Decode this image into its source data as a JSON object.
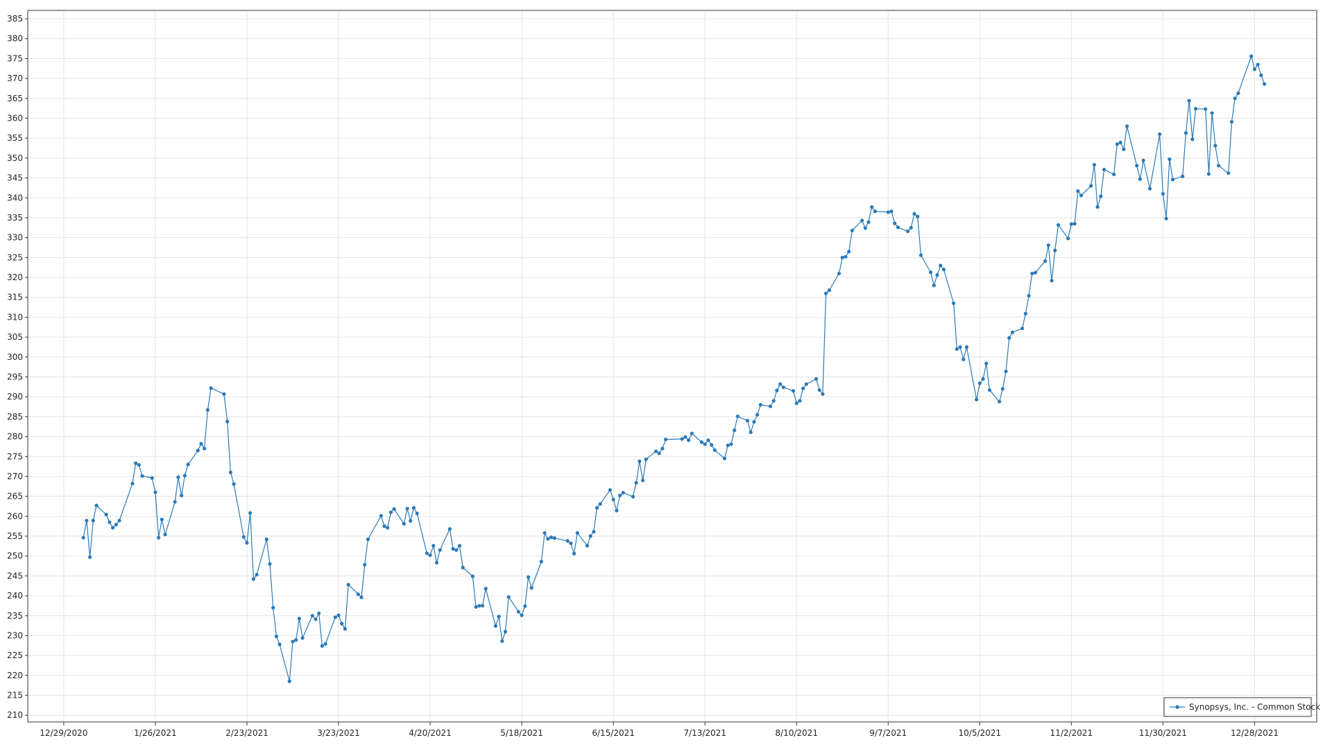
{
  "chart_data": {
    "type": "line",
    "legend_position": "bottom-right",
    "grid": true,
    "xlim": [
      "12/18/2020",
      "1/16/2022"
    ],
    "xticks": [
      "12/29/2020",
      "1/26/2021",
      "2/23/2021",
      "3/23/2021",
      "4/20/2021",
      "5/18/2021",
      "6/15/2021",
      "7/13/2021",
      "8/10/2021",
      "9/7/2021",
      "10/5/2021",
      "11/2/2021",
      "11/30/2021",
      "12/28/2021"
    ],
    "ylim": [
      208.3,
      387.1
    ],
    "yticks": [
      210,
      215,
      220,
      225,
      230,
      235,
      240,
      245,
      250,
      255,
      260,
      265,
      270,
      275,
      280,
      285,
      290,
      295,
      300,
      305,
      310,
      315,
      320,
      325,
      330,
      335,
      340,
      345,
      350,
      355,
      360,
      365,
      370,
      375,
      380,
      385
    ],
    "x": [
      "1/4/2021",
      "1/5/2021",
      "1/6/2021",
      "1/7/2021",
      "1/8/2021",
      "1/11/2021",
      "1/12/2021",
      "1/13/2021",
      "1/14/2021",
      "1/15/2021",
      "1/19/2021",
      "1/20/2021",
      "1/21/2021",
      "1/22/2021",
      "1/25/2021",
      "1/26/2021",
      "1/27/2021",
      "1/28/2021",
      "1/29/2021",
      "2/1/2021",
      "2/2/2021",
      "2/3/2021",
      "2/4/2021",
      "2/5/2021",
      "2/8/2021",
      "2/9/2021",
      "2/10/2021",
      "2/11/2021",
      "2/12/2021",
      "2/16/2021",
      "2/17/2021",
      "2/18/2021",
      "2/19/2021",
      "2/22/2021",
      "2/23/2021",
      "2/24/2021",
      "2/25/2021",
      "2/26/2021",
      "3/1/2021",
      "3/2/2021",
      "3/3/2021",
      "3/4/2021",
      "3/5/2021",
      "3/8/2021",
      "3/9/2021",
      "3/10/2021",
      "3/11/2021",
      "3/12/2021",
      "3/15/2021",
      "3/16/2021",
      "3/17/2021",
      "3/18/2021",
      "3/19/2021",
      "3/22/2021",
      "3/23/2021",
      "3/24/2021",
      "3/25/2021",
      "3/26/2021",
      "3/29/2021",
      "3/30/2021",
      "3/31/2021",
      "4/1/2021",
      "4/5/2021",
      "4/6/2021",
      "4/7/2021",
      "4/8/2021",
      "4/9/2021",
      "4/12/2021",
      "4/13/2021",
      "4/14/2021",
      "4/15/2021",
      "4/16/2021",
      "4/19/2021",
      "4/20/2021",
      "4/21/2021",
      "4/22/2021",
      "4/23/2021",
      "4/26/2021",
      "4/27/2021",
      "4/28/2021",
      "4/29/2021",
      "4/30/2021",
      "5/3/2021",
      "5/4/2021",
      "5/5/2021",
      "5/6/2021",
      "5/7/2021",
      "5/10/2021",
      "5/11/2021",
      "5/12/2021",
      "5/13/2021",
      "5/14/2021",
      "5/17/2021",
      "5/18/2021",
      "5/19/2021",
      "5/20/2021",
      "5/21/2021",
      "5/24/2021",
      "5/25/2021",
      "5/26/2021",
      "5/27/2021",
      "5/28/2021",
      "6/1/2021",
      "6/2/2021",
      "6/3/2021",
      "6/4/2021",
      "6/7/2021",
      "6/8/2021",
      "6/9/2021",
      "6/10/2021",
      "6/11/2021",
      "6/14/2021",
      "6/15/2021",
      "6/16/2021",
      "6/17/2021",
      "6/18/2021",
      "6/21/2021",
      "6/22/2021",
      "6/23/2021",
      "6/24/2021",
      "6/25/2021",
      "6/28/2021",
      "6/29/2021",
      "6/30/2021",
      "7/1/2021",
      "7/6/2021",
      "7/7/2021",
      "7/8/2021",
      "7/9/2021",
      "7/12/2021",
      "7/13/2021",
      "7/14/2021",
      "7/15/2021",
      "7/16/2021",
      "7/19/2021",
      "7/20/2021",
      "7/21/2021",
      "7/22/2021",
      "7/23/2021",
      "7/26/2021",
      "7/27/2021",
      "7/28/2021",
      "7/29/2021",
      "7/30/2021",
      "8/2/2021",
      "8/3/2021",
      "8/4/2021",
      "8/5/2021",
      "8/6/2021",
      "8/9/2021",
      "8/10/2021",
      "8/11/2021",
      "8/12/2021",
      "8/13/2021",
      "8/16/2021",
      "8/17/2021",
      "8/18/2021",
      "8/19/2021",
      "8/20/2021",
      "8/23/2021",
      "8/24/2021",
      "8/25/2021",
      "8/26/2021",
      "8/27/2021",
      "8/30/2021",
      "8/31/2021",
      "9/1/2021",
      "9/2/2021",
      "9/3/2021",
      "9/7/2021",
      "9/8/2021",
      "9/9/2021",
      "9/10/2021",
      "9/13/2021",
      "9/14/2021",
      "9/15/2021",
      "9/16/2021",
      "9/17/2021",
      "9/20/2021",
      "9/21/2021",
      "9/22/2021",
      "9/23/2021",
      "9/24/2021",
      "9/27/2021",
      "9/28/2021",
      "9/29/2021",
      "9/30/2021",
      "10/1/2021",
      "10/4/2021",
      "10/5/2021",
      "10/6/2021",
      "10/7/2021",
      "10/8/2021",
      "10/11/2021",
      "10/12/2021",
      "10/13/2021",
      "10/14/2021",
      "10/15/2021",
      "10/18/2021",
      "10/19/2021",
      "10/20/2021",
      "10/21/2021",
      "10/22/2021",
      "10/25/2021",
      "10/26/2021",
      "10/27/2021",
      "10/28/2021",
      "10/29/2021",
      "11/1/2021",
      "11/2/2021",
      "11/3/2021",
      "11/4/2021",
      "11/5/2021",
      "11/8/2021",
      "11/9/2021",
      "11/10/2021",
      "11/11/2021",
      "11/12/2021",
      "11/15/2021",
      "11/16/2021",
      "11/17/2021",
      "11/18/2021",
      "11/19/2021",
      "11/22/2021",
      "11/23/2021",
      "11/24/2021",
      "11/26/2021",
      "11/29/2021",
      "11/30/2021",
      "12/1/2021",
      "12/2/2021",
      "12/3/2021",
      "12/6/2021",
      "12/7/2021",
      "12/8/2021",
      "12/9/2021",
      "12/10/2021",
      "12/13/2021",
      "12/14/2021",
      "12/15/2021",
      "12/16/2021",
      "12/17/2021",
      "12/20/2021",
      "12/21/2021",
      "12/22/2021",
      "12/23/2021",
      "12/27/2021",
      "12/28/2021",
      "12/29/2021",
      "12/30/2021",
      "12/31/2021"
    ],
    "series": [
      {
        "name": "Synopsys, Inc. - Common Stock",
        "color": "#2a7ab8",
        "values": [
          254.6,
          258.9,
          249.7,
          258.9,
          262.7,
          260.4,
          258.5,
          257.1,
          257.9,
          258.9,
          268.2,
          273.3,
          272.9,
          270.1,
          269.6,
          266.0,
          254.6,
          259.2,
          255.4,
          263.6,
          269.8,
          265.2,
          270.2,
          273.0,
          276.5,
          278.2,
          277.0,
          286.7,
          292.2,
          290.7,
          283.8,
          271.0,
          268.1,
          254.8,
          253.3,
          260.8,
          244.2,
          245.3,
          254.2,
          248.0,
          237.0,
          229.8,
          227.8,
          218.5,
          228.5,
          228.9,
          234.3,
          229.4,
          235.0,
          234.1,
          235.6,
          227.4,
          227.9,
          234.6,
          235.1,
          233.0,
          231.7,
          242.8,
          240.4,
          239.6,
          247.8,
          254.2,
          260.1,
          257.5,
          257.1,
          261.0,
          261.8,
          258.1,
          261.9,
          258.8,
          262.1,
          260.7,
          250.7,
          250.2,
          252.6,
          248.3,
          251.5,
          256.8,
          251.8,
          251.5,
          252.6,
          247.1,
          244.9,
          237.2,
          237.5,
          237.5,
          241.8,
          232.4,
          234.8,
          228.6,
          231.0,
          239.7,
          236.0,
          235.1,
          237.4,
          244.7,
          242.0,
          248.6,
          255.8,
          254.3,
          254.7,
          254.5,
          253.8,
          253.2,
          250.6,
          255.8,
          252.6,
          255.0,
          256.1,
          262.1,
          263.1,
          266.6,
          264.2,
          261.4,
          265.2,
          265.9,
          264.9,
          268.4,
          273.8,
          269.0,
          274.3,
          276.3,
          275.8,
          277.0,
          279.3,
          279.4,
          279.9,
          279.1,
          280.8,
          278.6,
          278.1,
          279.1,
          277.9,
          276.6,
          274.5,
          277.8,
          278.1,
          281.6,
          285.1,
          284.0,
          281.1,
          283.7,
          285.5,
          288.0,
          287.6,
          289.0,
          291.6,
          293.2,
          292.4,
          291.5,
          288.4,
          289.0,
          292.1,
          293.2,
          294.5,
          291.7,
          290.7,
          316.0,
          316.8,
          321.0,
          325.0,
          325.2,
          326.5,
          331.8,
          334.3,
          332.4,
          333.9,
          337.7,
          336.6,
          336.4,
          336.6,
          333.6,
          332.6,
          331.6,
          332.5,
          336.0,
          335.3,
          325.6,
          321.3,
          318.0,
          320.6,
          323.0,
          322.0,
          313.5,
          302.0,
          302.5,
          299.4,
          302.5,
          289.3,
          293.4,
          294.5,
          298.4,
          291.7,
          288.8,
          292.0,
          296.4,
          304.8,
          306.2,
          307.2,
          310.9,
          315.4,
          321.0,
          321.2,
          324.1,
          328.1,
          319.2,
          326.8,
          333.2,
          329.8,
          333.4,
          333.5,
          341.7,
          340.6,
          343.0,
          348.3,
          337.7,
          340.4,
          347.1,
          345.9,
          353.5,
          353.9,
          352.2,
          358.0,
          348.1,
          344.7,
          349.4,
          342.3,
          356.0,
          341.0,
          334.8,
          349.7,
          344.6,
          345.4,
          356.3,
          364.4,
          354.7,
          362.4,
          362.3,
          346.0,
          361.3,
          353.1,
          348.1,
          346.2,
          359.1,
          365.0,
          366.3,
          375.6,
          372.3,
          373.5,
          370.8,
          368.6
        ]
      }
    ]
  }
}
